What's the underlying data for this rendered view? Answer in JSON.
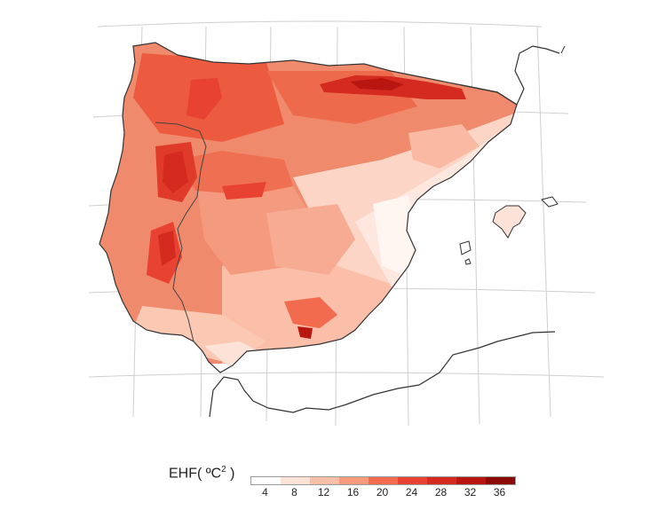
{
  "legend": {
    "title_prefix": "EHF( ºC",
    "title_sup": "2",
    "title_suffix": " )",
    "ticks": [
      "4",
      "8",
      "12",
      "16",
      "20",
      "24",
      "28",
      "32",
      "36"
    ],
    "colors": [
      "#ffffff",
      "#fde2d8",
      "#fbbfa9",
      "#f79a7c",
      "#f26b4e",
      "#e84232",
      "#d42a1f",
      "#b71611",
      "#8b0a08"
    ]
  },
  "map": {
    "land_fill_default": "#f4a48a",
    "coastline_color": "#333333",
    "graticule_color": "#cfcfcf",
    "sea_color": "#ffffff"
  }
}
